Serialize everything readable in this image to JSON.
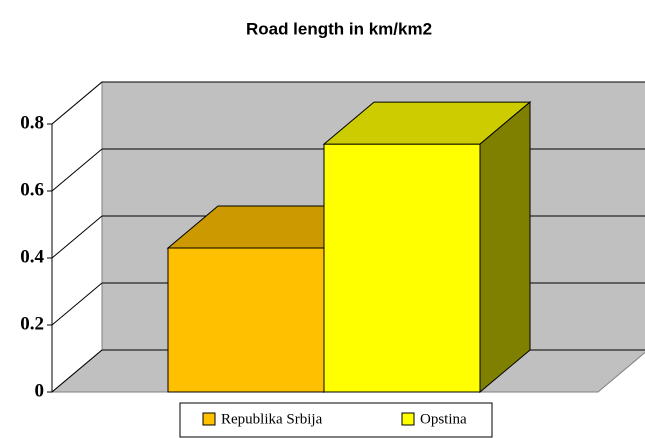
{
  "chart_data": {
    "type": "bar3d",
    "title": "Road length in km/km2",
    "series": [
      {
        "name": "Republika Srbija",
        "color": "#ffc000",
        "values": [
          0.43
        ]
      },
      {
        "name": "Opstina",
        "color": "#ffff00",
        "values": [
          0.74
        ]
      }
    ],
    "ylim": [
      0,
      0.8
    ],
    "yticks": [
      0,
      0.2,
      0.4,
      0.6,
      0.8
    ],
    "grid": true,
    "legend": "bottom"
  }
}
